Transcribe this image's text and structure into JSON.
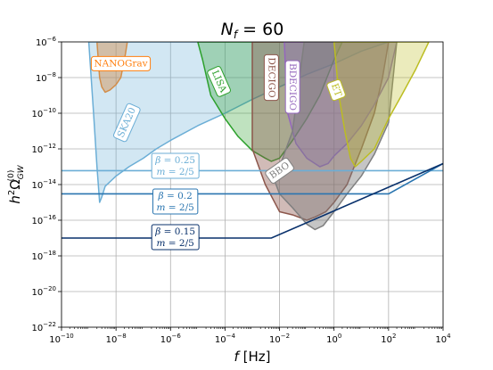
{
  "chart_data": {
    "type": "area",
    "title": "N_f = 60",
    "title_parts": {
      "base": "N",
      "sub": "f",
      "rest": " = 60"
    },
    "xlabel": "f [Hz]",
    "xlabel_parts": {
      "var": "f",
      "unit": " [Hz]"
    },
    "ylabel": "h²Ω_GW^(0)",
    "ylabel_parts": {
      "base": "h",
      "sup1": "2",
      "omega": "Ω",
      "sub": "GW",
      "sup2": "(0)"
    },
    "x_scale": "log",
    "y_scale": "log",
    "xlim": [
      1e-10,
      10000
    ],
    "ylim": [
      1e-22,
      1e-06
    ],
    "grid": true,
    "x_ticks": [
      {
        "value": 1e-10,
        "base": "10",
        "exp": "−10"
      },
      {
        "value": 1e-08,
        "base": "10",
        "exp": "−8"
      },
      {
        "value": 1e-06,
        "base": "10",
        "exp": "−6"
      },
      {
        "value": 0.0001,
        "base": "10",
        "exp": "−4"
      },
      {
        "value": 0.01,
        "base": "10",
        "exp": "−2"
      },
      {
        "value": 1,
        "base": "10",
        "exp": "0"
      },
      {
        "value": 100,
        "base": "10",
        "exp": "2"
      },
      {
        "value": 10000,
        "base": "10",
        "exp": "4"
      }
    ],
    "y_ticks": [
      {
        "value": 1e-22,
        "base": "10",
        "exp": "−22"
      },
      {
        "value": 1e-20,
        "base": "10",
        "exp": "−20"
      },
      {
        "value": 1e-18,
        "base": "10",
        "exp": "−18"
      },
      {
        "value": 1e-16,
        "base": "10",
        "exp": "−16"
      },
      {
        "value": 1e-14,
        "base": "10",
        "exp": "−14"
      },
      {
        "value": 1e-12,
        "base": "10",
        "exp": "−12"
      },
      {
        "value": 1e-10,
        "base": "10",
        "exp": "−10"
      },
      {
        "value": 1e-08,
        "base": "10",
        "exp": "−8"
      },
      {
        "value": 1e-06,
        "base": "10",
        "exp": "−6"
      }
    ],
    "sensitivity_curves": [
      {
        "name": "NANOGrav",
        "color": "#ff7f0e",
        "fill_opacity": 0.45,
        "label_rotation": 0,
        "label_at": [
          1.5e-08,
          6e-08
        ],
        "points": [
          [
            2e-09,
            1e-06
          ],
          [
            2.5e-09,
            1e-08
          ],
          [
            3e-09,
            3e-09
          ],
          [
            4e-09,
            1.5e-09
          ],
          [
            6e-09,
            2e-09
          ],
          [
            1e-08,
            4e-09
          ],
          [
            1.5e-08,
            1e-08
          ],
          [
            2.2e-08,
            2e-07
          ],
          [
            2.6e-08,
            1e-06
          ]
        ]
      },
      {
        "name": "SKA20",
        "color": "#6baed6",
        "fill_opacity": 0.3,
        "label_rotation": -66,
        "label_at": [
          2.5e-08,
          3e-11
        ],
        "points": [
          [
            1e-09,
            1e-06
          ],
          [
            1.5e-09,
            1e-10
          ],
          [
            2e-09,
            1e-13
          ],
          [
            2.5e-09,
            1e-15
          ],
          [
            3e-09,
            2e-15
          ],
          [
            4e-09,
            8e-15
          ],
          [
            1e-08,
            3e-14
          ],
          [
            3e-08,
            1e-13
          ],
          [
            1e-07,
            3e-13
          ],
          [
            3e-07,
            1e-12
          ],
          [
            1e-06,
            3e-12
          ],
          [
            1e-05,
            2e-11
          ],
          [
            0.0001,
            1e-10
          ],
          [
            0.001,
            6e-10
          ],
          [
            0.01,
            3e-09
          ],
          [
            0.1,
            1.5e-08
          ],
          [
            1,
            6e-08
          ],
          [
            10,
            3e-07
          ],
          [
            100,
            1e-06
          ]
        ]
      },
      {
        "name": "LISA",
        "color": "#2ca02c",
        "fill_opacity": 0.3,
        "label_rotation": 66,
        "label_at": [
          6e-05,
          6e-09
        ],
        "points": [
          [
            1e-05,
            1e-06
          ],
          [
            1.5e-05,
            1e-07
          ],
          [
            3e-05,
            1e-09
          ],
          [
            0.0001,
            5e-11
          ],
          [
            0.0003,
            5e-12
          ],
          [
            0.001,
            8e-13
          ],
          [
            0.003,
            3e-13
          ],
          [
            0.005,
            2e-13
          ],
          [
            0.01,
            3e-13
          ],
          [
            0.03,
            3e-12
          ],
          [
            0.1,
            5e-11
          ],
          [
            0.3,
            1e-09
          ],
          [
            1,
            1e-07
          ],
          [
            2,
            1e-06
          ]
        ]
      },
      {
        "name": "DECIGO",
        "color": "#8c564b",
        "fill_opacity": 0.4,
        "label_rotation": 90,
        "label_at": [
          0.005,
          1e-08
        ],
        "points": [
          [
            0.001,
            1e-06
          ],
          [
            0.001,
            1e-12
          ],
          [
            0.003,
            1e-14
          ],
          [
            0.01,
            3e-16
          ],
          [
            0.03,
            2e-16
          ],
          [
            0.1,
            1e-16
          ],
          [
            0.2,
            1.5e-16
          ],
          [
            0.5,
            3e-16
          ],
          [
            1,
            1e-15
          ],
          [
            3,
            1e-14
          ],
          [
            10,
            1e-12
          ],
          [
            30,
            1e-10
          ],
          [
            60,
            1e-08
          ],
          [
            100,
            1e-06
          ]
        ]
      },
      {
        "name": "BDECIGO",
        "color": "#9467bd",
        "fill_opacity": 0.35,
        "label_rotation": 90,
        "label_at": [
          0.03,
          3e-09
        ],
        "points": [
          [
            0.015,
            1e-06
          ],
          [
            0.017,
            1e-08
          ],
          [
            0.02,
            1e-10
          ],
          [
            0.04,
            2e-12
          ],
          [
            0.1,
            3e-13
          ],
          [
            0.3,
            1e-13
          ],
          [
            0.6,
            1.5e-13
          ],
          [
            1,
            4e-13
          ],
          [
            3,
            2e-12
          ],
          [
            10,
            2e-11
          ],
          [
            30,
            3e-10
          ],
          [
            100,
            1e-08
          ],
          [
            200,
            1e-06
          ]
        ]
      },
      {
        "name": "BBO",
        "color": "#7f7f7f",
        "fill_opacity": 0.45,
        "label_rotation": -35,
        "label_at": [
          0.01,
          6e-14
        ],
        "points": [
          [
            0.08,
            1e-06
          ],
          [
            0.03,
            1e-11
          ],
          [
            0.01,
            1e-13
          ],
          [
            0.005,
            5e-14
          ],
          [
            0.01,
            3e-15
          ],
          [
            0.03,
            5e-16
          ],
          [
            0.1,
            6e-17
          ],
          [
            0.2,
            3e-17
          ],
          [
            0.4,
            5e-17
          ],
          [
            1,
            3e-16
          ],
          [
            3,
            3e-15
          ],
          [
            10,
            3e-14
          ],
          [
            30,
            5e-13
          ],
          [
            100,
            3e-11
          ],
          [
            200,
            1e-06
          ]
        ]
      },
      {
        "name": "ET",
        "color": "#bcbd22",
        "fill_opacity": 0.3,
        "label_rotation": 70,
        "label_at": [
          1.2,
          2e-09
        ],
        "points": [
          [
            1,
            1e-06
          ],
          [
            1.5,
            1e-09
          ],
          [
            2.5,
            1e-11
          ],
          [
            4,
            3e-13
          ],
          [
            6,
            1e-13
          ],
          [
            10,
            2e-13
          ],
          [
            30,
            1e-12
          ],
          [
            100,
            5e-11
          ],
          [
            300,
            1e-09
          ],
          [
            1000,
            3e-08
          ],
          [
            3000,
            1e-06
          ]
        ]
      }
    ],
    "series": [
      {
        "name": "β = 0.25, m = 2/5",
        "color": "#6baed6",
        "points": [
          [
            1e-10,
            6e-14
          ],
          [
            10000,
            6e-14
          ]
        ]
      },
      {
        "name": "β = 0.2, m = 2/5",
        "color": "#2a75b0",
        "points": [
          [
            1e-10,
            3e-15
          ],
          [
            100,
            3e-15
          ],
          [
            10000,
            1.5e-13
          ]
        ]
      },
      {
        "name": "β = 0.15, m = 2/5",
        "color": "#08306b",
        "points": [
          [
            1e-10,
            1e-17
          ],
          [
            0.005,
            1e-17
          ],
          [
            10000,
            1.5e-13
          ]
        ]
      }
    ],
    "annotations": [
      {
        "series": 0,
        "line1": {
          "var": "β",
          "rest": " = 0.25"
        },
        "line2": {
          "var": "m",
          "rest": " = 2/5"
        },
        "at": [
          1.5e-06,
          1e-13
        ],
        "color": "#6baed6"
      },
      {
        "series": 1,
        "line1": {
          "var": "β",
          "rest": " = 0.2"
        },
        "line2": {
          "var": "m",
          "rest": " = 2/5"
        },
        "at": [
          1.5e-06,
          1e-15
        ],
        "color": "#2a75b0"
      },
      {
        "series": 2,
        "line1": {
          "var": "β",
          "rest": " = 0.15"
        },
        "line2": {
          "var": "m",
          "rest": " = 2/5"
        },
        "at": [
          1.5e-06,
          1e-17
        ],
        "color": "#08306b"
      }
    ]
  }
}
